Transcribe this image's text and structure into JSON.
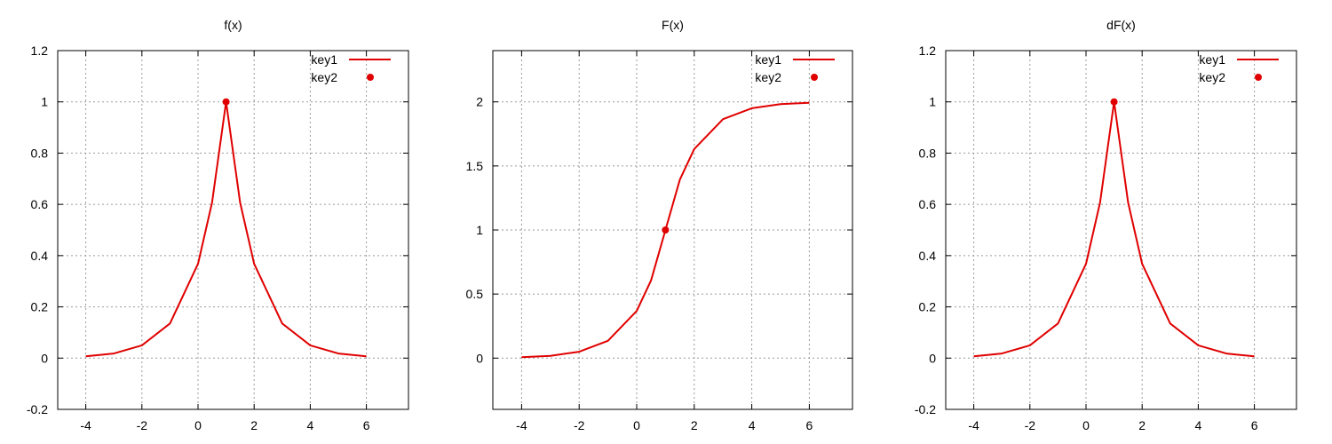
{
  "colors": {
    "curve": "#e00000",
    "grid": "#9a9a9a",
    "axis": "#000000"
  },
  "chart_data": [
    {
      "type": "line",
      "title": "f(x)",
      "xlim": [
        -5,
        7.5
      ],
      "ylim": [
        -0.2,
        1.2
      ],
      "xticks": [
        -4,
        -2,
        0,
        2,
        4,
        6
      ],
      "yticks": [
        -0.2,
        0,
        0.2,
        0.4,
        0.6,
        0.8,
        1,
        1.2
      ],
      "ytick_labels": [
        "-0.2",
        "0",
        "0.2",
        "0.4",
        "0.6",
        "0.8",
        "1",
        "1.2"
      ],
      "grid": true,
      "legend": "top-right",
      "series": [
        {
          "name": "key1",
          "style": "line",
          "x": [
            -4,
            -3,
            -2,
            -1,
            0,
            0.5,
            1,
            1.5,
            2,
            3,
            4,
            5,
            6
          ],
          "y": [
            0.007,
            0.018,
            0.05,
            0.135,
            0.368,
            0.607,
            1,
            0.607,
            0.368,
            0.135,
            0.05,
            0.018,
            0.007
          ]
        },
        {
          "name": "key2",
          "style": "point",
          "x": [
            1
          ],
          "y": [
            1
          ]
        }
      ]
    },
    {
      "type": "line",
      "title": "F(x)",
      "xlim": [
        -5,
        7.5
      ],
      "ylim": [
        -0.4,
        2.4
      ],
      "xticks": [
        -4,
        -2,
        0,
        2,
        4,
        6
      ],
      "yticks": [
        0,
        0.5,
        1,
        1.5,
        2
      ],
      "ytick_labels": [
        "0",
        "0.5",
        "1",
        "1.5",
        "2"
      ],
      "grid": true,
      "legend": "top-right",
      "series": [
        {
          "name": "key1",
          "style": "line",
          "x": [
            -4,
            -3,
            -2,
            -1,
            0,
            0.5,
            1,
            1.5,
            2,
            3,
            4,
            5,
            6
          ],
          "y": [
            0.007,
            0.018,
            0.05,
            0.135,
            0.368,
            0.607,
            1,
            1.393,
            1.632,
            1.865,
            1.95,
            1.982,
            1.993
          ]
        },
        {
          "name": "key2",
          "style": "point",
          "x": [
            1
          ],
          "y": [
            1
          ]
        }
      ]
    },
    {
      "type": "line",
      "title": "dF(x)",
      "xlim": [
        -5,
        7.5
      ],
      "ylim": [
        -0.2,
        1.2
      ],
      "xticks": [
        -4,
        -2,
        0,
        2,
        4,
        6
      ],
      "yticks": [
        -0.2,
        0,
        0.2,
        0.4,
        0.6,
        0.8,
        1,
        1.2
      ],
      "ytick_labels": [
        "-0.2",
        "0",
        "0.2",
        "0.4",
        "0.6",
        "0.8",
        "1",
        "1.2"
      ],
      "grid": true,
      "legend": "top-right",
      "series": [
        {
          "name": "key1",
          "style": "line",
          "x": [
            -4,
            -3,
            -2,
            -1,
            0,
            0.5,
            1,
            1.5,
            2,
            3,
            4,
            5,
            6
          ],
          "y": [
            0.007,
            0.018,
            0.05,
            0.135,
            0.368,
            0.607,
            1,
            0.607,
            0.368,
            0.135,
            0.05,
            0.018,
            0.007
          ]
        },
        {
          "name": "key2",
          "style": "point",
          "x": [
            1
          ],
          "y": [
            1
          ]
        }
      ]
    }
  ]
}
